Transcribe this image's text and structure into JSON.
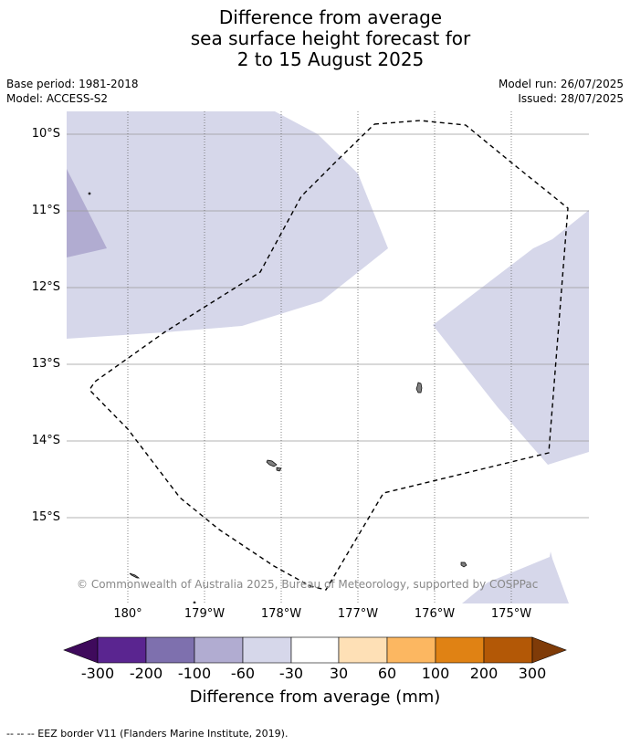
{
  "title": {
    "line1": "Difference from average",
    "line2": "sea surface height forecast for",
    "line3": "2 to 15 August 2025"
  },
  "meta": {
    "base_period": "Base period: 1981-2018",
    "model": "Model: ACCESS-S2",
    "model_run": "Model run: 26/07/2025",
    "issued": "Issued: 28/07/2025"
  },
  "copyright": "© Commonwealth of Australia 2025, Bureau of Meteorology, supported by COSPPac",
  "map": {
    "lat_labels": [
      "10°S",
      "11°S",
      "12°S",
      "13°S",
      "14°S",
      "15°S"
    ],
    "lon_labels": [
      "180°",
      "179°W",
      "178°W",
      "177°W",
      "176°W",
      "175°W"
    ],
    "colors": {
      "light_negative": "#d6d7ea",
      "medium_negative": "#b1acd1",
      "land": "#808080",
      "eez_border": "#000000"
    }
  },
  "colorbar": {
    "ticks": [
      "-300",
      "-200",
      "-100",
      "-60",
      "-30",
      "30",
      "60",
      "100",
      "200",
      "300"
    ],
    "colors": [
      "#3f0a5c",
      "#5a2590",
      "#7e70ae",
      "#b1acd1",
      "#d6d7ea",
      "#ffffff",
      "#fee0b6",
      "#fcb761",
      "#e08214",
      "#b35806",
      "#7f3b08"
    ],
    "title": "Difference from average (mm)"
  },
  "footer": "-- -- -- EEZ border V11 (Flanders Marine Institute, 2019)."
}
